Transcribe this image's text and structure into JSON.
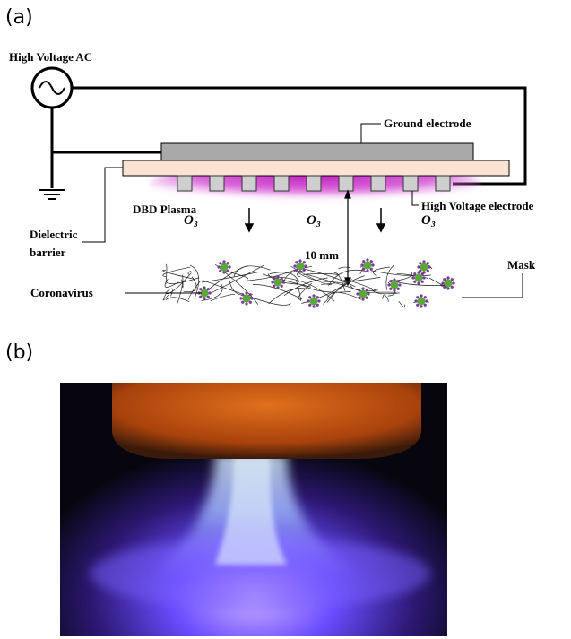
{
  "panels": [
    {
      "label": "(a)",
      "labels": {
        "source": "High Voltage AC",
        "ground_electrode": "Ground electrode",
        "plasma": "DBD Plasma",
        "ozone": [
          "O₃",
          "O₃",
          "O₃"
        ],
        "hv_electrode": "High Voltage electrode",
        "dielectric": [
          "Dielectric",
          "barrier"
        ],
        "gap": "10 mm",
        "mask": "Mask",
        "virus": "Coronavirus"
      }
    },
    {
      "label": "(b)"
    }
  ]
}
